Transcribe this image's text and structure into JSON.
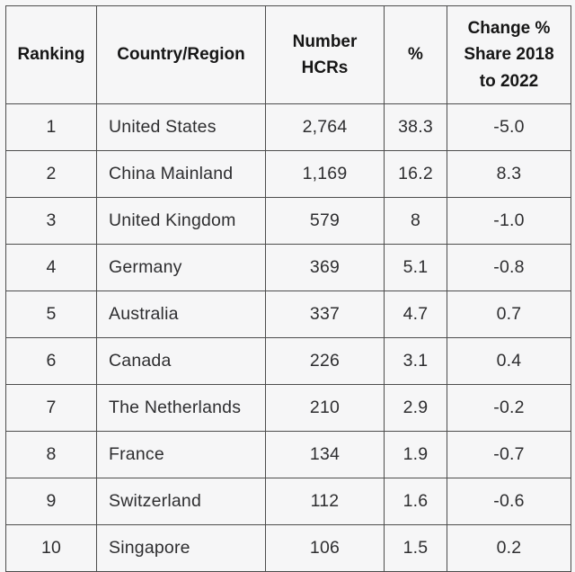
{
  "chart_data": {
    "type": "table",
    "title": "",
    "columns": [
      "Ranking",
      "Country/Region",
      "Number HCRs",
      "%",
      "Change % Share 2018 to 2022"
    ],
    "rows": [
      [
        "1",
        "United States",
        "2,764",
        "38.3",
        "-5.0"
      ],
      [
        "2",
        "China Mainland",
        "1,169",
        "16.2",
        "8.3"
      ],
      [
        "3",
        "United Kingdom",
        "579",
        "8",
        "-1.0"
      ],
      [
        "4",
        "Germany",
        "369",
        "5.1",
        "-0.8"
      ],
      [
        "5",
        "Australia",
        "337",
        "4.7",
        "0.7"
      ],
      [
        "6",
        "Canada",
        "226",
        "3.1",
        "0.4"
      ],
      [
        "7",
        "The Netherlands",
        "210",
        "2.9",
        "-0.2"
      ],
      [
        "8",
        "France",
        "134",
        "1.9",
        "-0.7"
      ],
      [
        "9",
        "Switzerland",
        "112",
        "1.6",
        "-0.6"
      ],
      [
        "10",
        "Singapore",
        "106",
        "1.5",
        "0.2"
      ]
    ]
  },
  "colors": {
    "background": "#f6f6f7",
    "border": "#4d4d4d",
    "header_text": "#161616",
    "body_text": "#2e2e30"
  }
}
